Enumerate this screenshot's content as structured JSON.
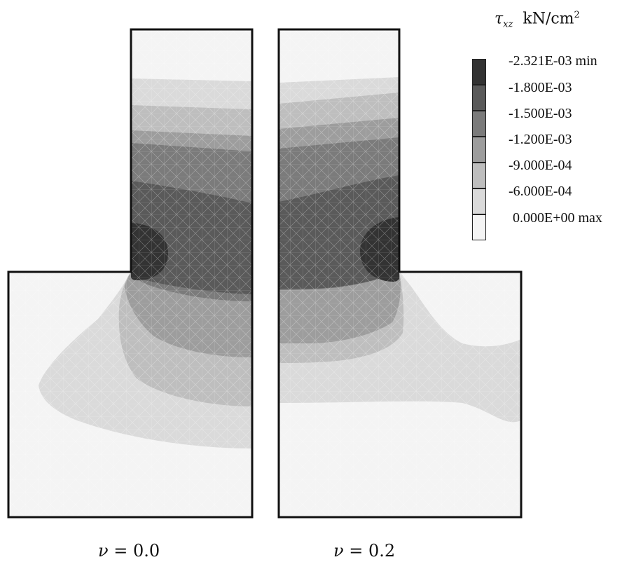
{
  "header": {
    "symbol": "τ",
    "subscript": "xz",
    "unit": "kN/cm",
    "unit_exponent": "2"
  },
  "legend": {
    "entries": [
      {
        "label": "-2.321E-03 min",
        "color": "#333333"
      },
      {
        "label": "-1.800E-03",
        "color": "#5a5a5a"
      },
      {
        "label": "-1.500E-03",
        "color": "#7b7b7b"
      },
      {
        "label": "-1.200E-03",
        "color": "#9d9d9d"
      },
      {
        "label": "-9.000E-04",
        "color": "#bebebe"
      },
      {
        "label": "-6.000E-04",
        "color": "#dadada"
      },
      {
        "label": "0.000E+00 max",
        "color": "#f4f4f4"
      }
    ]
  },
  "captions": {
    "left": {
      "symbol": "ν",
      "value": "= 0.0"
    },
    "right": {
      "symbol": "ν",
      "value": "= 0.2"
    }
  },
  "colors": {
    "outline": "#111111",
    "mesh": "#ffffff"
  }
}
